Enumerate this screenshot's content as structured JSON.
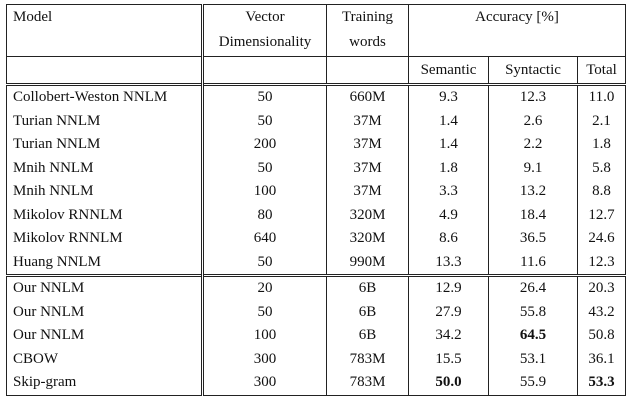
{
  "header": {
    "model": "Model",
    "vector_line1": "Vector",
    "vector_line2": "Dimensionality",
    "training_line1": "Training",
    "training_line2": "words",
    "accuracy": "Accuracy [%]",
    "semantic": "Semantic",
    "syntactic": "Syntactic",
    "total": "Total"
  },
  "rows": [
    {
      "model": "Collobert-Weston NNLM",
      "dim": "50",
      "words": "660M",
      "semantic": "9.3",
      "syntactic": "12.3",
      "total": "11.0"
    },
    {
      "model": "Turian NNLM",
      "dim": "50",
      "words": "37M",
      "semantic": "1.4",
      "syntactic": "2.6",
      "total": "2.1"
    },
    {
      "model": "Turian NNLM",
      "dim": "200",
      "words": "37M",
      "semantic": "1.4",
      "syntactic": "2.2",
      "total": "1.8"
    },
    {
      "model": "Mnih NNLM",
      "dim": "50",
      "words": "37M",
      "semantic": "1.8",
      "syntactic": "9.1",
      "total": "5.8"
    },
    {
      "model": "Mnih NNLM",
      "dim": "100",
      "words": "37M",
      "semantic": "3.3",
      "syntactic": "13.2",
      "total": "8.8"
    },
    {
      "model": "Mikolov RNNLM",
      "dim": "80",
      "words": "320M",
      "semantic": "4.9",
      "syntactic": "18.4",
      "total": "12.7"
    },
    {
      "model": "Mikolov RNNLM",
      "dim": "640",
      "words": "320M",
      "semantic": "8.6",
      "syntactic": "36.5",
      "total": "24.6"
    },
    {
      "model": "Huang NNLM",
      "dim": "50",
      "words": "990M",
      "semantic": "13.3",
      "syntactic": "11.6",
      "total": "12.3"
    },
    {
      "model": "Our NNLM",
      "dim": "20",
      "words": "6B",
      "semantic": "12.9",
      "syntactic": "26.4",
      "total": "20.3"
    },
    {
      "model": "Our NNLM",
      "dim": "50",
      "words": "6B",
      "semantic": "27.9",
      "syntactic": "55.8",
      "total": "43.2"
    },
    {
      "model": "Our NNLM",
      "dim": "100",
      "words": "6B",
      "semantic": "34.2",
      "syntactic": "64.5",
      "total": "50.8"
    },
    {
      "model": "CBOW",
      "dim": "300",
      "words": "783M",
      "semantic": "15.5",
      "syntactic": "53.1",
      "total": "36.1"
    },
    {
      "model": "Skip-gram",
      "dim": "300",
      "words": "783M",
      "semantic": "50.0",
      "syntactic": "55.9",
      "total": "53.3"
    }
  ]
}
